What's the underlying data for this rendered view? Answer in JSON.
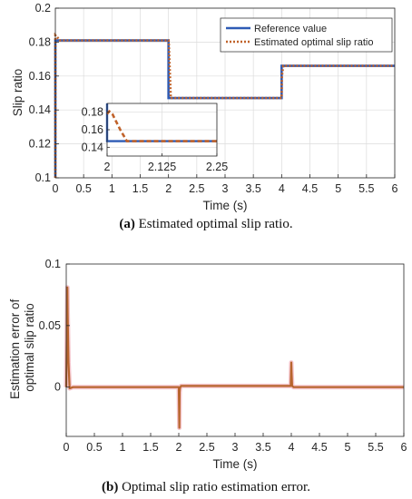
{
  "colors": {
    "reference": "#2E5BB5",
    "estimated": "#C0622A",
    "error": "#B8652E",
    "error_halo": "#F2B8C0"
  },
  "chart_data": [
    {
      "type": "line",
      "caption_label": "a",
      "caption_text": "Estimated optimal slip ratio.",
      "xlabel": "Time (s)",
      "ylabel": "Slip ratio",
      "xlim": [
        0,
        6
      ],
      "ylim": [
        0.1,
        0.2
      ],
      "xticks": [
        0,
        0.5,
        1,
        1.5,
        2,
        2.5,
        3,
        3.5,
        4,
        4.5,
        5,
        5.5,
        6
      ],
      "xtick_labels": [
        "0",
        "0.5",
        "1",
        "1.5",
        "2",
        "2.5",
        "3",
        "3.5",
        "4",
        "4.5",
        "5",
        "5.5",
        "6"
      ],
      "yticks": [
        0.1,
        0.12,
        0.14,
        0.16,
        0.18,
        0.2
      ],
      "ytick_labels": [
        "0.1",
        "0.12",
        "0.14",
        "0.16",
        "0.18",
        "0.2"
      ],
      "grid": true,
      "legend": "top-right",
      "series": [
        {
          "name": "Reference value",
          "style": "solid",
          "x": [
            0,
            0,
            2,
            2,
            4,
            4,
            6
          ],
          "y": [
            0.1,
            0.181,
            0.181,
            0.147,
            0.147,
            0.166,
            0.166
          ]
        },
        {
          "name": "Estimated optimal slip ratio",
          "style": "dotted",
          "x": [
            0,
            0,
            0.03,
            0.08,
            2,
            2.005,
            2.04,
            4,
            4.005,
            4.03,
            6
          ],
          "y": [
            0.1,
            0.184,
            0.183,
            0.181,
            0.181,
            0.18,
            0.147,
            0.147,
            0.16,
            0.166,
            0.166
          ]
        }
      ],
      "inset": {
        "xlim": [
          2,
          2.25
        ],
        "ylim": [
          0.13,
          0.19
        ],
        "xticks": [
          2,
          2.125,
          2.25
        ],
        "xtick_labels": [
          "2",
          "2.125",
          "2.25"
        ],
        "yticks": [
          0.14,
          0.16,
          0.18
        ],
        "ytick_labels": [
          "0.14",
          "0.16",
          "0.18"
        ],
        "grid": true,
        "series": [
          {
            "name": "Reference value",
            "style": "solid",
            "x": [
              2,
              2,
              2.25
            ],
            "y": [
              0.19,
              0.147,
              0.147
            ]
          },
          {
            "name": "Estimated optimal slip ratio",
            "style": "dashed",
            "x": [
              2,
              2.005,
              2.012,
              2.03,
              2.045,
              2.25
            ],
            "y": [
              0.178,
              0.181,
              0.178,
              0.16,
              0.147,
              0.147
            ]
          }
        ]
      }
    },
    {
      "type": "line",
      "caption_label": "b",
      "caption_text": "Optimal slip ratio estimation error.",
      "xlabel": "Time (s)",
      "ylabel": "Estimation error of optimal slip ratio",
      "ylabel_lines": [
        "Estimation error of",
        "optimal slip ratio"
      ],
      "xlim": [
        0,
        6
      ],
      "ylim": [
        -0.04,
        0.1
      ],
      "xticks": [
        0,
        0.5,
        1,
        1.5,
        2,
        2.5,
        3,
        3.5,
        4,
        4.5,
        5,
        5.5,
        6
      ],
      "xtick_labels": [
        "0",
        "0.5",
        "1",
        "1.5",
        "2",
        "2.5",
        "3",
        "3.5",
        "4",
        "4.5",
        "5",
        "5.5",
        "6"
      ],
      "yticks": [
        0,
        0.05,
        0.1
      ],
      "ytick_labels": [
        "0",
        "0.05",
        "0.1"
      ],
      "grid": false,
      "series": [
        {
          "name": "Estimation error",
          "x": [
            0,
            0.02,
            0.025,
            0.04,
            0.06,
            0.12,
            0.2,
            1.95,
            2.0,
            2.01,
            2.015,
            2.02,
            2.04,
            2.1,
            3.99,
            4.0,
            4.005,
            4.015,
            4.04,
            4.1,
            6
          ],
          "y": [
            0.0,
            0.081,
            0.06,
            0.02,
            -0.001,
            0.0,
            0.0,
            0.0,
            0.0,
            -0.033,
            -0.004,
            -0.001,
            0.001,
            0.001,
            0.001,
            0.02,
            0.012,
            0.001,
            0.0,
            0.0,
            0.0
          ]
        }
      ]
    }
  ]
}
